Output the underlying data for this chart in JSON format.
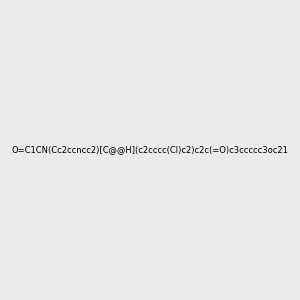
{
  "smiles": "O=C1CN(Cc2ccncc2)[C@@H](c2cccc(Cl)c2)c2c(=O)c3ccccc3oc21",
  "background_color": "#ebebeb",
  "title": "",
  "img_size": [
    300,
    300
  ],
  "atom_colors": {
    "O": "#ff0000",
    "N": "#0000ff",
    "Cl": "#00cc00"
  }
}
